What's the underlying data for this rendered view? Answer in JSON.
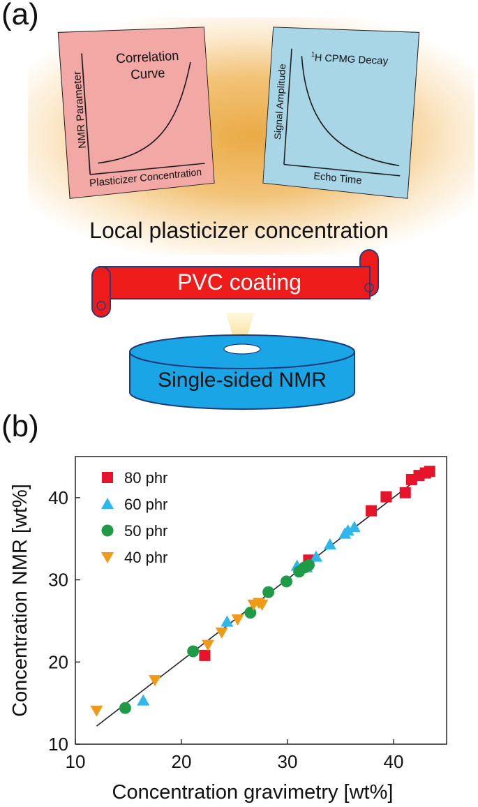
{
  "panel_a": {
    "label": "(a)",
    "left_card": {
      "y_label": "NMR Parameter",
      "x_label": "Plasticizer Concentration",
      "curve_label_line1": "Correlation",
      "curve_label_line2": "Curve"
    },
    "right_card": {
      "y_label": "Signal Amplitude",
      "x_label": "Echo Time",
      "title_sup": "1",
      "title_rest": "H CPMG Decay"
    },
    "caption": "Local plasticizer concentration",
    "banner": "PVC coating",
    "device": "Single-sided NMR"
  },
  "panel_b": {
    "label": "(b)"
  },
  "colors": {
    "80 phr": "#e5142b",
    "60 phr": "#2fb6ea",
    "50 phr": "#1f9a47",
    "40 phr": "#f09a16",
    "pvc": "#ee1b1b",
    "nmr": "#1aa6e6",
    "card_left": "#f2a9a6",
    "card_right": "#a8d6e6"
  },
  "chart_data": {
    "type": "scatter",
    "xlabel": "Concentration gravimetry [wt%]",
    "ylabel": "Concentration NMR [wt%]",
    "xlim": [
      10,
      45
    ],
    "ylim": [
      10,
      45
    ],
    "xticks": [
      10,
      20,
      30,
      40
    ],
    "yticks": [
      10,
      20,
      30,
      40
    ],
    "legend_position": "top-left",
    "fit_line": {
      "x": [
        12,
        43.5
      ],
      "y": [
        12.2,
        43.5
      ]
    },
    "series": [
      {
        "name": "80 phr",
        "marker": "square",
        "x": [
          22.2,
          32.0,
          37.9,
          39.3,
          41.1,
          41.7,
          42.4,
          43.0,
          43.4
        ],
        "y": [
          20.8,
          32.4,
          38.4,
          40.1,
          40.6,
          42.2,
          42.7,
          43.0,
          43.2
        ]
      },
      {
        "name": "60 phr",
        "marker": "triangle-up",
        "x": [
          16.4,
          24.3,
          30.9,
          31.8,
          32.7,
          34.0,
          35.4,
          35.7,
          36.3
        ],
        "y": [
          15.3,
          24.9,
          31.7,
          31.5,
          32.8,
          34.3,
          35.6,
          36.0,
          36.4
        ]
      },
      {
        "name": "50 phr",
        "marker": "circle",
        "x": [
          14.7,
          21.1,
          26.5,
          28.2,
          29.9,
          31.1,
          31.6,
          32.0
        ],
        "y": [
          14.4,
          21.3,
          26.0,
          28.5,
          29.8,
          31.0,
          31.5,
          31.8
        ]
      },
      {
        "name": "40 phr",
        "marker": "triangle-down",
        "x": [
          12.0,
          17.5,
          22.5,
          23.8,
          25.3,
          26.8,
          27.3,
          27.6
        ],
        "y": [
          14.1,
          17.8,
          22.1,
          23.6,
          25.2,
          27.0,
          27.2,
          27.0
        ]
      }
    ]
  }
}
